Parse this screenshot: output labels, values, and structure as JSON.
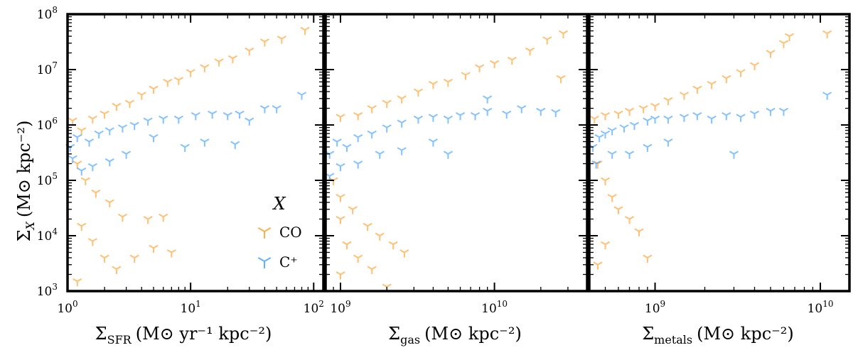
{
  "chart_data": [
    {
      "type": "scatter",
      "panel": "sfr",
      "xscale": "log",
      "yscale": "log",
      "xlim": [
        1,
        120
      ],
      "ylim": [
        1000,
        100000000
      ],
      "xlabel": "Σ_SFR (M⊙ yr⁻¹ kpc⁻²)",
      "ylabel": "Σ_X (M⊙ kpc⁻²)",
      "x_tick_labels": [
        {
          "value": 1,
          "base": "10",
          "exp": "0"
        },
        {
          "value": 10,
          "base": "10",
          "exp": "1"
        },
        {
          "value": 100,
          "base": "10",
          "exp": "2"
        }
      ],
      "y_tick_labels": [
        {
          "value": 1000,
          "base": "10",
          "exp": "3"
        },
        {
          "value": 10000,
          "base": "10",
          "exp": "4"
        },
        {
          "value": 100000,
          "base": "10",
          "exp": "5"
        },
        {
          "value": 1000000,
          "base": "10",
          "exp": "6"
        },
        {
          "value": 10000000,
          "base": "10",
          "exp": "7"
        },
        {
          "value": 100000000,
          "base": "10",
          "exp": "8"
        }
      ],
      "series": [
        {
          "name": "CO",
          "color": "#ff8c00",
          "points": [
            [
              1.1,
              1200000.0
            ],
            [
              1.3,
              800000.0
            ],
            [
              1.6,
              1300000.0
            ],
            [
              2.0,
              1600000.0
            ],
            [
              2.5,
              2200000.0
            ],
            [
              3.2,
              2500000.0
            ],
            [
              4.0,
              3500000.0
            ],
            [
              5.0,
              4500000.0
            ],
            [
              6.5,
              6000000.0
            ],
            [
              8.0,
              6500000.0
            ],
            [
              10,
              9000000.0
            ],
            [
              13,
              11000000.0
            ],
            [
              17,
              14000000.0
            ],
            [
              22,
              16000000.0
            ],
            [
              30,
              22000000.0
            ],
            [
              40,
              32000000.0
            ],
            [
              55,
              36000000.0
            ],
            [
              85,
              52000000.0
            ],
            [
              1.2,
              200000.0
            ],
            [
              1.4,
              100000.0
            ],
            [
              1.7,
              60000.0
            ],
            [
              2.2,
              40000.0
            ],
            [
              2.8,
              22000.0
            ],
            [
              1.3,
              15000.0
            ],
            [
              1.6,
              8000.0
            ],
            [
              2.0,
              4000.0
            ],
            [
              2.5,
              2500.0
            ],
            [
              3.5,
              4000.0
            ],
            [
              5.0,
              6000.0
            ],
            [
              7.0,
              5000.0
            ],
            [
              1.2,
              1500.0
            ],
            [
              4.5,
              20000.0
            ],
            [
              6,
              22000.0
            ]
          ]
        },
        {
          "name": "C⁺",
          "color": "#1e90ff",
          "points": [
            [
              1.05,
              400000.0
            ],
            [
              1.2,
              600000.0
            ],
            [
              1.5,
              500000.0
            ],
            [
              1.8,
              700000.0
            ],
            [
              2.2,
              800000.0
            ],
            [
              2.8,
              900000.0
            ],
            [
              3.5,
              1000000.0
            ],
            [
              4.5,
              1200000.0
            ],
            [
              6,
              1300000.0
            ],
            [
              8,
              1300000.0
            ],
            [
              11,
              1500000.0
            ],
            [
              15,
              1600000.0
            ],
            [
              20,
              1500000.0
            ],
            [
              25,
              1600000.0
            ],
            [
              30,
              1200000.0
            ],
            [
              40,
              2000000.0
            ],
            [
              50,
              2000000.0
            ],
            [
              80,
              3500000.0
            ],
            [
              1.1,
              250000.0
            ],
            [
              1.3,
              150000.0
            ],
            [
              1.6,
              180000.0
            ],
            [
              2.2,
              220000.0
            ],
            [
              3.0,
              300000.0
            ],
            [
              5.0,
              600000.0
            ],
            [
              13,
              500000.0
            ],
            [
              23,
              450000.0
            ],
            [
              9,
              400000.0
            ]
          ]
        }
      ]
    },
    {
      "type": "scatter",
      "panel": "gas",
      "xscale": "log",
      "yscale": "log",
      "xlim": [
        800000000,
        40000000000
      ],
      "ylim": [
        1000,
        100000000
      ],
      "xlabel": "Σ_gas (M⊙ kpc⁻²)",
      "x_tick_labels": [
        {
          "value": 1000000000,
          "base": "10",
          "exp": "9"
        },
        {
          "value": 10000000000,
          "base": "10",
          "exp": "10"
        }
      ],
      "series": [
        {
          "name": "CO",
          "color": "#ff8c00",
          "points": [
            [
              1000000000.0,
              1400000.0
            ],
            [
              1300000000.0,
              1500000.0
            ],
            [
              1600000000.0,
              2000000.0
            ],
            [
              2000000000.0,
              2500000.0
            ],
            [
              2500000000.0,
              3000000.0
            ],
            [
              3200000000.0,
              4000000.0
            ],
            [
              4000000000.0,
              5500000.0
            ],
            [
              5000000000.0,
              6000000.0
            ],
            [
              6500000000.0,
              8000000.0
            ],
            [
              8000000000.0,
              11000000.0
            ],
            [
              10000000000.0,
              13000000.0
            ],
            [
              13000000000.0,
              15000000.0
            ],
            [
              17000000000.0,
              22000000.0
            ],
            [
              22000000000.0,
              35000000.0
            ],
            [
              28000000000.0,
              45000000.0
            ],
            [
              27000000000.0,
              7000000.0
            ],
            [
              900000000.0,
              100000.0
            ],
            [
              1000000000.0,
              50000.0
            ],
            [
              1200000000.0,
              30000.0
            ],
            [
              1500000000.0,
              15000.0
            ],
            [
              1800000000.0,
              10000.0
            ],
            [
              2200000000.0,
              7000.0
            ],
            [
              1000000000.0,
              20000.0
            ],
            [
              1100000000.0,
              7000.0
            ],
            [
              1300000000.0,
              4000.0
            ],
            [
              1000000000.0,
              2000.0
            ],
            [
              2600000000.0,
              5000.0
            ],
            [
              1600000000.0,
              2500.0
            ],
            [
              2000000000.0,
              1200.0
            ]
          ]
        },
        {
          "name": "C⁺",
          "color": "#1e90ff",
          "points": [
            [
              850000000.0,
              300000.0
            ],
            [
              950000000.0,
              500000.0
            ],
            [
              1100000000.0,
              400000.0
            ],
            [
              1300000000.0,
              600000.0
            ],
            [
              1600000000.0,
              700000.0
            ],
            [
              2000000000.0,
              900000.0
            ],
            [
              2500000000.0,
              1100000.0
            ],
            [
              3200000000.0,
              1300000.0
            ],
            [
              4000000000.0,
              1400000.0
            ],
            [
              5000000000.0,
              1300000.0
            ],
            [
              6000000000.0,
              1500000.0
            ],
            [
              7500000000.0,
              1500000.0
            ],
            [
              9000000000.0,
              1800000.0
            ],
            [
              12000000000.0,
              1600000.0
            ],
            [
              15000000000.0,
              2000000.0
            ],
            [
              20000000000.0,
              1800000.0
            ],
            [
              25000000000.0,
              1700000.0
            ],
            [
              9000000000.0,
              3000000.0
            ],
            [
              850000000.0,
              120000.0
            ],
            [
              1000000000.0,
              180000.0
            ],
            [
              1300000000.0,
              200000.0
            ],
            [
              1800000000.0,
              300000.0
            ],
            [
              2500000000.0,
              350000.0
            ],
            [
              4000000000.0,
              500000.0
            ],
            [
              5000000000.0,
              300000.0
            ]
          ]
        }
      ]
    },
    {
      "type": "scatter",
      "panel": "metals",
      "xscale": "log",
      "yscale": "log",
      "xlim": [
        400000000,
        15000000000
      ],
      "ylim": [
        1000,
        100000000
      ],
      "xlabel": "Σ_metals (M⊙ kpc⁻²)",
      "x_tick_labels": [
        {
          "value": 1000000000,
          "base": "10",
          "exp": "9"
        },
        {
          "value": 10000000000,
          "base": "10",
          "exp": "10"
        }
      ],
      "series": [
        {
          "name": "CO",
          "color": "#ff8c00",
          "points": [
            [
              430000000.0,
              1300000.0
            ],
            [
              500000000.0,
              1500000.0
            ],
            [
              600000000.0,
              1600000.0
            ],
            [
              700000000.0,
              1800000.0
            ],
            [
              850000000.0,
              2000000.0
            ],
            [
              1000000000.0,
              2200000.0
            ],
            [
              1200000000.0,
              2800000.0
            ],
            [
              1500000000.0,
              3500000.0
            ],
            [
              1800000000.0,
              4500000.0
            ],
            [
              2200000000.0,
              5500000.0
            ],
            [
              2700000000.0,
              7000000.0
            ],
            [
              3300000000.0,
              9000000.0
            ],
            [
              4000000000.0,
              12000000.0
            ],
            [
              5000000000.0,
              20000000.0
            ],
            [
              6000000000.0,
              30000000.0
            ],
            [
              6500000000.0,
              40000000.0
            ],
            [
              11000000000.0,
              45000000.0
            ],
            [
              450000000.0,
              200000.0
            ],
            [
              500000000.0,
              100000.0
            ],
            [
              550000000.0,
              50000.0
            ],
            [
              600000000.0,
              30000.0
            ],
            [
              700000000.0,
              20000.0
            ],
            [
              800000000.0,
              12000.0
            ],
            [
              500000000.0,
              7000.0
            ],
            [
              450000000.0,
              3000.0
            ],
            [
              900000000.0,
              4000.0
            ]
          ]
        },
        {
          "name": "C⁺",
          "color": "#1e90ff",
          "points": [
            [
              420000000.0,
              400000.0
            ],
            [
              460000000.0,
              600000.0
            ],
            [
              500000000.0,
              700000.0
            ],
            [
              550000000.0,
              800000.0
            ],
            [
              650000000.0,
              900000.0
            ],
            [
              750000000.0,
              1000000.0
            ],
            [
              900000000.0,
              1200000.0
            ],
            [
              1000000000.0,
              1300000.0
            ],
            [
              1200000000.0,
              1300000.0
            ],
            [
              1500000000.0,
              1400000.0
            ],
            [
              1800000000.0,
              1500000.0
            ],
            [
              2200000000.0,
              1300000.0
            ],
            [
              2700000000.0,
              1500000.0
            ],
            [
              3300000000.0,
              1400000.0
            ],
            [
              4000000000.0,
              1600000.0
            ],
            [
              5000000000.0,
              1800000.0
            ],
            [
              6000000000.0,
              1800000.0
            ],
            [
              11000000000.0,
              3500000.0
            ],
            [
              440000000.0,
              200000.0
            ],
            [
              550000000.0,
              300000.0
            ],
            [
              700000000.0,
              300000.0
            ],
            [
              900000000.0,
              400000.0
            ],
            [
              1200000000.0,
              500000.0
            ],
            [
              3000000000.0,
              300000.0
            ]
          ]
        }
      ]
    }
  ],
  "legend": {
    "title": "X",
    "entries": [
      {
        "label": "CO",
        "color": "#ff8c00"
      },
      {
        "label": "C⁺",
        "color": "#1e90ff"
      }
    ]
  },
  "text": {
    "y_sigma": "Σ",
    "y_sub": "X",
    "y_units": "(M⊙ kpc⁻²)",
    "x1_sigma": "Σ",
    "x1_sub": "SFR",
    "x1_units": "(M⊙ yr⁻¹ kpc⁻²)",
    "x2_sigma": "Σ",
    "x2_sub": "gas",
    "x2_units": "(M⊙ kpc⁻²)",
    "x3_sigma": "Σ",
    "x3_sub": "metals",
    "x3_units": "(M⊙ kpc⁻²)"
  }
}
